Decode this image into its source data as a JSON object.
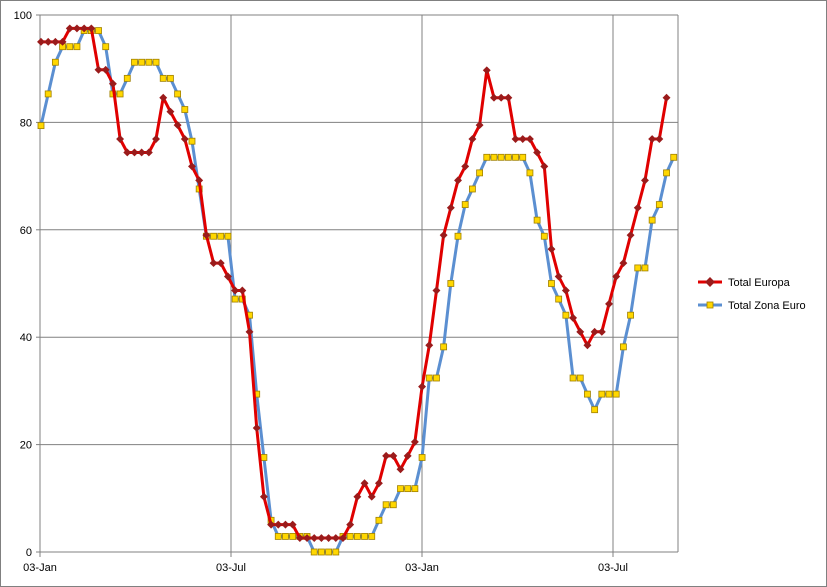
{
  "chart_data": {
    "type": "line",
    "title": "",
    "xlabel": "",
    "ylabel": "",
    "ylim": [
      0,
      100
    ],
    "yticks": [
      0,
      20,
      40,
      60,
      80,
      100
    ],
    "xticks": [
      "03-Jan",
      "03-Jul",
      "03-Jan",
      "03-Jul"
    ],
    "grid": true,
    "legend": "right",
    "series": [
      {
        "name": "Total Europa",
        "color": "#e00000",
        "marker": "diamond",
        "marker_color": "#9b1b1b",
        "values": [
          95,
          95,
          95,
          95,
          97.5,
          97.5,
          97.5,
          97.5,
          89.8,
          89.8,
          87.2,
          76.9,
          74.4,
          74.4,
          74.4,
          74.4,
          76.9,
          84.6,
          82,
          79.5,
          76.9,
          71.8,
          69.2,
          59,
          53.8,
          53.8,
          51.3,
          48.7,
          48.7,
          41,
          23.1,
          10.3,
          5.1,
          5.1,
          5.1,
          5.1,
          2.6,
          2.6,
          2.6,
          2.6,
          2.6,
          2.6,
          2.6,
          5.1,
          10.3,
          12.8,
          10.3,
          12.8,
          17.9,
          17.9,
          15.4,
          17.9,
          20.5,
          30.8,
          38.5,
          48.7,
          59,
          64.1,
          69.2,
          71.8,
          76.9,
          79.5,
          89.7,
          84.6,
          84.6,
          84.6,
          76.9,
          76.9,
          76.9,
          74.4,
          71.8,
          56.4,
          51.3,
          48.7,
          43.6,
          41,
          38.5,
          41,
          41,
          46.2,
          51.3,
          53.8,
          59,
          64.1,
          69.2,
          76.9,
          76.9,
          84.6
        ]
      },
      {
        "name": "Total Zona Euro",
        "color": "#5b8fd1",
        "marker": "square",
        "marker_color": "#ffd700",
        "values": [
          79.4,
          85.3,
          91.2,
          94.1,
          94.1,
          94.1,
          97.1,
          97.1,
          97.1,
          94.1,
          85.3,
          85.3,
          88.2,
          91.2,
          91.2,
          91.2,
          91.2,
          88.2,
          88.2,
          85.3,
          82.4,
          76.5,
          67.6,
          58.8,
          58.8,
          58.8,
          58.8,
          47.1,
          47.1,
          44.1,
          29.4,
          17.6,
          5.9,
          2.9,
          2.9,
          2.9,
          2.9,
          2.9,
          0,
          0,
          0,
          0,
          2.9,
          2.9,
          2.9,
          2.9,
          2.9,
          5.9,
          8.8,
          8.8,
          11.8,
          11.8,
          11.8,
          17.6,
          32.4,
          32.4,
          38.2,
          50,
          58.8,
          64.7,
          67.6,
          70.6,
          73.5,
          73.5,
          73.5,
          73.5,
          73.5,
          73.5,
          70.6,
          61.8,
          58.8,
          50,
          47.1,
          44.1,
          32.4,
          32.4,
          29.4,
          26.5,
          29.4,
          29.4,
          29.4,
          38.2,
          44.1,
          52.9,
          52.9,
          61.8,
          64.7,
          70.6,
          73.5
        ]
      }
    ]
  }
}
